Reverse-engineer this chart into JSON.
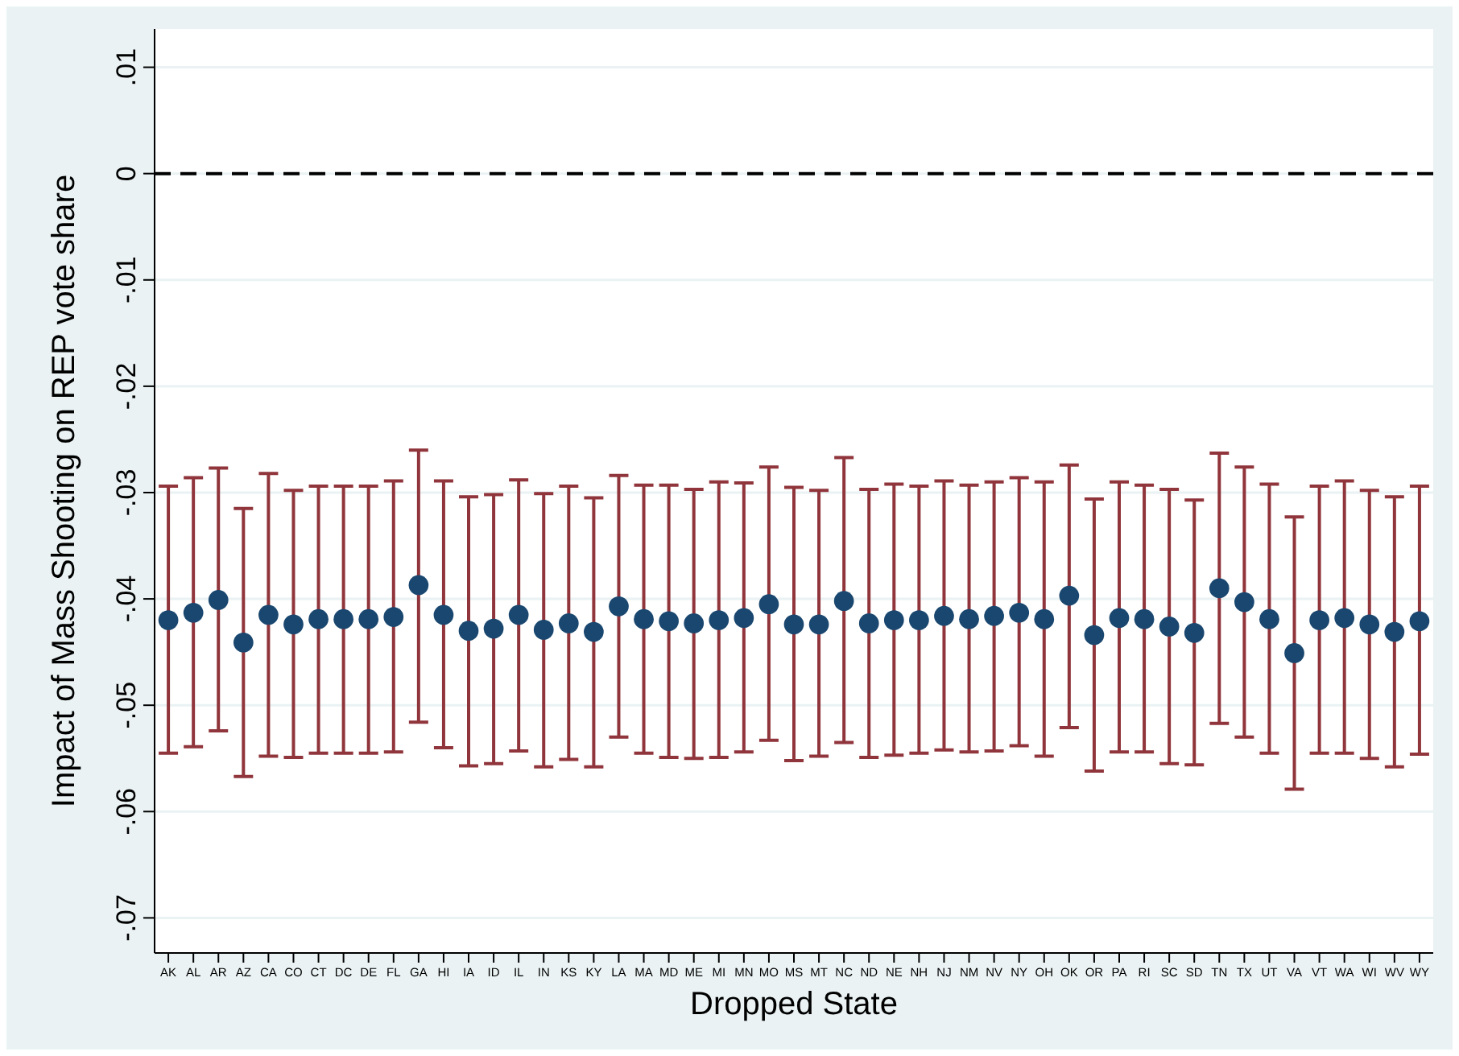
{
  "chart_data": {
    "type": "scatter",
    "xlabel": "Dropped State",
    "ylabel": "Impact of Mass Shooting on REP vote share",
    "categories": [
      "AK",
      "AL",
      "AR",
      "AZ",
      "CA",
      "CO",
      "CT",
      "DC",
      "DE",
      "FL",
      "GA",
      "HI",
      "IA",
      "ID",
      "IL",
      "IN",
      "KS",
      "KY",
      "LA",
      "MA",
      "MD",
      "ME",
      "MI",
      "MN",
      "MO",
      "MS",
      "MT",
      "NC",
      "ND",
      "NE",
      "NH",
      "NJ",
      "NM",
      "NV",
      "NY",
      "OH",
      "OK",
      "OR",
      "PA",
      "RI",
      "SC",
      "SD",
      "TN",
      "TX",
      "UT",
      "VA",
      "VT",
      "WA",
      "WI",
      "WV",
      "WY"
    ],
    "series": [
      {
        "color": "#1a476f",
        "values": [
          -0.042,
          -0.0413,
          -0.0401,
          -0.0441,
          -0.0415,
          -0.0424,
          -0.0419,
          -0.0419,
          -0.0419,
          -0.0417,
          -0.0387,
          -0.0415,
          -0.043,
          -0.0428,
          -0.0415,
          -0.0429,
          -0.0423,
          -0.0431,
          -0.0407,
          -0.0419,
          -0.0421,
          -0.0423,
          -0.042,
          -0.0418,
          -0.0405,
          -0.0424,
          -0.0424,
          -0.0402,
          -0.0423,
          -0.042,
          -0.042,
          -0.0416,
          -0.0419,
          -0.0416,
          -0.0413,
          -0.0419,
          -0.0397,
          -0.0434,
          -0.0418,
          -0.0419,
          -0.0426,
          -0.0432,
          -0.039,
          -0.0403,
          -0.0419,
          -0.0451,
          -0.042,
          -0.0418,
          -0.0424,
          -0.0431,
          -0.0421
        ],
        "errors": [
          [
            -0.0545,
            -0.0294
          ],
          [
            -0.0539,
            -0.0286
          ],
          [
            -0.0524,
            -0.0277
          ],
          [
            -0.0567,
            -0.0315
          ],
          [
            -0.0548,
            -0.0282
          ],
          [
            -0.0549,
            -0.0298
          ],
          [
            -0.0545,
            -0.0294
          ],
          [
            -0.0545,
            -0.0294
          ],
          [
            -0.0545,
            -0.0294
          ],
          [
            -0.0544,
            -0.0289
          ],
          [
            -0.0516,
            -0.026
          ],
          [
            -0.054,
            -0.0289
          ],
          [
            -0.0557,
            -0.0304
          ],
          [
            -0.0555,
            -0.0302
          ],
          [
            -0.0543,
            -0.0288
          ],
          [
            -0.0558,
            -0.0301
          ],
          [
            -0.0551,
            -0.0294
          ],
          [
            -0.0558,
            -0.0305
          ],
          [
            -0.053,
            -0.0284
          ],
          [
            -0.0545,
            -0.0293
          ],
          [
            -0.0549,
            -0.0293
          ],
          [
            -0.055,
            -0.0297
          ],
          [
            -0.0549,
            -0.029
          ],
          [
            -0.0544,
            -0.0291
          ],
          [
            -0.0533,
            -0.0276
          ],
          [
            -0.0552,
            -0.0295
          ],
          [
            -0.0548,
            -0.0298
          ],
          [
            -0.0535,
            -0.0267
          ],
          [
            -0.0549,
            -0.0297
          ],
          [
            -0.0547,
            -0.0292
          ],
          [
            -0.0545,
            -0.0294
          ],
          [
            -0.0542,
            -0.0289
          ],
          [
            -0.0544,
            -0.0293
          ],
          [
            -0.0543,
            -0.029
          ],
          [
            -0.0538,
            -0.0286
          ],
          [
            -0.0548,
            -0.029
          ],
          [
            -0.0521,
            -0.0274
          ],
          [
            -0.0562,
            -0.0306
          ],
          [
            -0.0544,
            -0.029
          ],
          [
            -0.0544,
            -0.0293
          ],
          [
            -0.0555,
            -0.0297
          ],
          [
            -0.0556,
            -0.0307
          ],
          [
            -0.0517,
            -0.0263
          ],
          [
            -0.053,
            -0.0276
          ],
          [
            -0.0545,
            -0.0292
          ],
          [
            -0.0579,
            -0.0323
          ],
          [
            -0.0545,
            -0.0294
          ],
          [
            -0.0545,
            -0.0289
          ],
          [
            -0.055,
            -0.0298
          ],
          [
            -0.0558,
            -0.0304
          ],
          [
            -0.0546,
            -0.0294
          ]
        ]
      }
    ],
    "ylim": [
      -0.0733,
      0.0136
    ],
    "yticks": [
      {
        "value": 0.01,
        "label": ".01"
      },
      {
        "value": 0,
        "label": "0"
      },
      {
        "value": -0.01,
        "label": "-.01"
      },
      {
        "value": -0.02,
        "label": "-.02"
      },
      {
        "value": -0.03,
        "label": "-.03"
      },
      {
        "value": -0.04,
        "label": "-.04"
      },
      {
        "value": -0.05,
        "label": "-.05"
      },
      {
        "value": -0.06,
        "label": "-.06"
      },
      {
        "value": -0.07,
        "label": "-.07"
      }
    ],
    "grid": "y",
    "marker": "circle",
    "ref_lines": [
      {
        "axis": "y",
        "value": 0,
        "color": "#000000",
        "line_style": "dashed"
      }
    ]
  }
}
